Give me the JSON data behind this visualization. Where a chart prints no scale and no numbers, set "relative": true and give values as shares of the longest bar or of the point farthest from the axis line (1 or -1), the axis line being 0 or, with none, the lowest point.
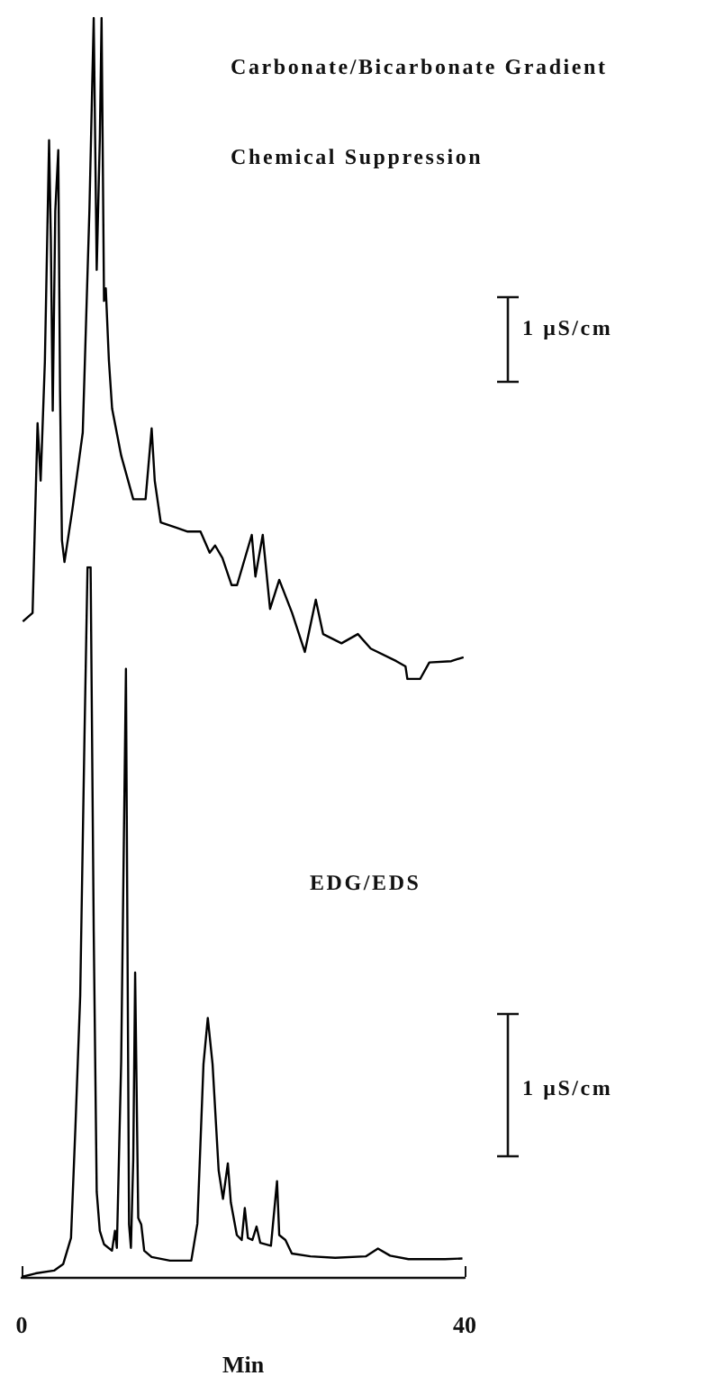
{
  "chart_data": [
    {
      "type": "line",
      "relative": true,
      "color": "#000000",
      "marker": "none",
      "xlim": [
        0,
        40
      ],
      "tick_labels": false,
      "annotations": [
        "Carbonate/Bicarbonate Gradient",
        "Chemical Suppression",
        "1 μS/cm"
      ],
      "x": [
        0.11,
        0.99,
        1.44,
        1.72,
        2.1,
        2.48,
        2.64,
        2.81,
        3.04,
        3.31,
        3.47,
        3.64,
        3.87,
        4.58,
        5.52,
        6.12,
        6.51,
        6.78,
        7.06,
        7.22,
        7.44,
        7.6,
        7.88,
        8.17,
        8.99,
        10.08,
        11.19,
        11.74,
        12.02,
        12.56,
        13.95,
        14.99,
        16.15,
        16.98,
        17.47,
        18.13,
        18.96,
        19.45,
        20.78,
        21.11,
        21.77,
        22.43,
        23.26,
        24.42,
        25.57,
        26.56,
        27.22,
        28.88,
        30.36,
        31.52,
        33.83,
        34.66,
        34.83,
        35.98,
        36.81,
        38.79,
        39.9
      ],
      "values": [
        0.087,
        0.1,
        0.387,
        0.3,
        0.48,
        0.815,
        0.665,
        0.406,
        0.708,
        0.8,
        0.436,
        0.21,
        0.177,
        0.256,
        0.373,
        0.708,
        1,
        0.619,
        0.817,
        1,
        0.572,
        0.591,
        0.482,
        0.409,
        0.338,
        0.272,
        0.272,
        0.379,
        0.3,
        0.237,
        0.229,
        0.223,
        0.223,
        0.191,
        0.202,
        0.183,
        0.142,
        0.142,
        0.218,
        0.155,
        0.218,
        0.106,
        0.15,
        0.1,
        0.041,
        0.12,
        0.068,
        0.054,
        0.068,
        0.046,
        0.027,
        0.019,
        0,
        0,
        0.025,
        0.027,
        0.033
      ]
    },
    {
      "type": "line",
      "relative": true,
      "color": "#000000",
      "marker": "none",
      "xlim": [
        0,
        40
      ],
      "xticks": [
        0,
        40
      ],
      "xlabel": "Min",
      "annotations": [
        "EDG/EDS",
        "1 μS/cm"
      ],
      "x": [
        0,
        1.27,
        2.93,
        3.75,
        4.46,
        4.86,
        5.29,
        5.68,
        5.95,
        6.23,
        6.51,
        6.78,
        7.06,
        7.44,
        8.16,
        8.43,
        8.6,
        8.99,
        9.42,
        9.7,
        9.87,
        10.08,
        10.25,
        10.53,
        10.8,
        11.07,
        11.74,
        13.39,
        15.32,
        15.87,
        16.42,
        16.81,
        17.24,
        17.79,
        18.18,
        18.62,
        18.89,
        19.43,
        19.87,
        20.15,
        20.43,
        20.83,
        21.21,
        21.55,
        22.51,
        23.06,
        23.26,
        23.82,
        24.4,
        26.07,
        28.31,
        31.07,
        32.17,
        33.27,
        34.93,
        38.23,
        39.8
      ],
      "values": [
        0,
        0.005,
        0.009,
        0.018,
        0.055,
        0.212,
        0.396,
        0.765,
        1,
        1,
        0.488,
        0.12,
        0.065,
        0.046,
        0.037,
        0.065,
        0.041,
        0.304,
        0.857,
        0.074,
        0.041,
        0.166,
        0.429,
        0.083,
        0.074,
        0.037,
        0.028,
        0.023,
        0.023,
        0.075,
        0.3,
        0.365,
        0.3,
        0.15,
        0.11,
        0.16,
        0.105,
        0.059,
        0.052,
        0.097,
        0.055,
        0.052,
        0.071,
        0.048,
        0.044,
        0.135,
        0.059,
        0.052,
        0.033,
        0.029,
        0.027,
        0.029,
        0.04,
        0.03,
        0.025,
        0.025,
        0.026
      ]
    }
  ]
}
